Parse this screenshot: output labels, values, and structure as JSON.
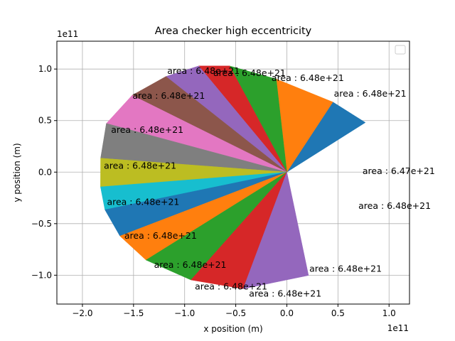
{
  "chart_data": {
    "type": "pie",
    "title": "Area checker high eccentricity",
    "xlabel": "x position (m)",
    "ylabel": "y position (m)",
    "x_offset_text": "1e11",
    "y_offset_text": "1e11",
    "xlim": [
      -2.25,
      1.2
    ],
    "ylim": [
      -1.28,
      1.27
    ],
    "xticks": [
      -2.0,
      -1.5,
      -1.0,
      -0.5,
      0.0,
      0.5,
      1.0
    ],
    "xtick_labels": [
      "−2.0",
      "−1.5",
      "−1.0",
      "−0.5",
      "0.0",
      "0.5",
      "1.0"
    ],
    "yticks": [
      -1.0,
      -0.5,
      0.0,
      0.5,
      1.0
    ],
    "ytick_labels": [
      "−1.0",
      "−0.5",
      "0.0",
      "0.5",
      "1.0"
    ],
    "grid": true,
    "legend": "top-right (empty)",
    "focus": [
      0.0,
      0.0
    ],
    "orbit_points": [
      [
        0.768,
        0.481
      ],
      [
        0.45,
        0.68
      ],
      [
        -0.104,
        0.903
      ],
      [
        -0.56,
        1.03
      ],
      [
        -0.862,
        1.03
      ],
      [
        -1.183,
        0.928
      ],
      [
        -1.514,
        0.745
      ],
      [
        -1.766,
        0.472
      ],
      [
        -1.822,
        0.135
      ],
      [
        -1.823,
        -0.143
      ],
      [
        -1.78,
        -0.365
      ],
      [
        -1.633,
        -0.62
      ],
      [
        -1.378,
        -0.853
      ],
      [
        -0.938,
        -1.046
      ],
      [
        -0.427,
        -1.132
      ],
      [
        0.212,
        -1.002
      ],
      [
        0.703,
        -0.672
      ],
      [
        0.76,
        0.4
      ]
    ],
    "sectors": [
      {
        "color": "#1f77b4",
        "value": "6.48e+21"
      },
      {
        "color": "#ff7f0e",
        "value": "6.48e+21"
      },
      {
        "color": "#2ca02c",
        "value": "6.48e+21"
      },
      {
        "color": "#d62728",
        "value": "6.48e+21"
      },
      {
        "color": "#9467bd",
        "value": "6.48e+21"
      },
      {
        "color": "#8c564b",
        "value": "6.48e+21"
      },
      {
        "color": "#e377c2",
        "value": "6.48e+21"
      },
      {
        "color": "#7f7f7f",
        "value": "6.48e+21"
      },
      {
        "color": "#bcbd22",
        "value": "6.48e+21"
      },
      {
        "color": "#17becf",
        "value": "6.48e+21"
      },
      {
        "color": "#1f77b4",
        "value": "6.48e+21"
      },
      {
        "color": "#ff7f0e",
        "value": "6.48e+21"
      },
      {
        "color": "#2ca02c",
        "value": "6.48e+21"
      },
      {
        "color": "#d62728",
        "value": "6.48e+21"
      },
      {
        "color": "#9467bd",
        "value": "6.47e+21"
      }
    ],
    "labels": [
      {
        "text": "area : 6.48e+21",
        "x": 0.46,
        "y": 0.76
      },
      {
        "text": "area : 6.48e+21",
        "x": -0.15,
        "y": 0.91
      },
      {
        "text": "area : 6.48e+21",
        "x": -0.72,
        "y": 0.96
      },
      {
        "text": "area : 6.48e+21",
        "x": -1.17,
        "y": 0.98
      },
      {
        "text": "area : 6.48e+21",
        "x": -1.51,
        "y": 0.74
      },
      {
        "text": "area : 6.48e+21",
        "x": -1.72,
        "y": 0.41
      },
      {
        "text": "area : 6.48e+21",
        "x": -1.79,
        "y": 0.06
      },
      {
        "text": "area : 6.48e+21",
        "x": -1.76,
        "y": -0.29
      },
      {
        "text": "area : 6.48e+21",
        "x": -1.59,
        "y": -0.62
      },
      {
        "text": "area : 6.48e+21",
        "x": -1.3,
        "y": -0.9
      },
      {
        "text": "area : 6.48e+21",
        "x": -0.9,
        "y": -1.11
      },
      {
        "text": "area : 6.48e+21",
        "x": -0.37,
        "y": -1.18
      },
      {
        "text": "area : 6.48e+21",
        "x": 0.22,
        "y": -0.94
      },
      {
        "text": "area : 6.48e+21",
        "x": 0.7,
        "y": -0.33
      },
      {
        "text": "area : 6.47e+21",
        "x": 0.74,
        "y": 0.01
      }
    ]
  }
}
